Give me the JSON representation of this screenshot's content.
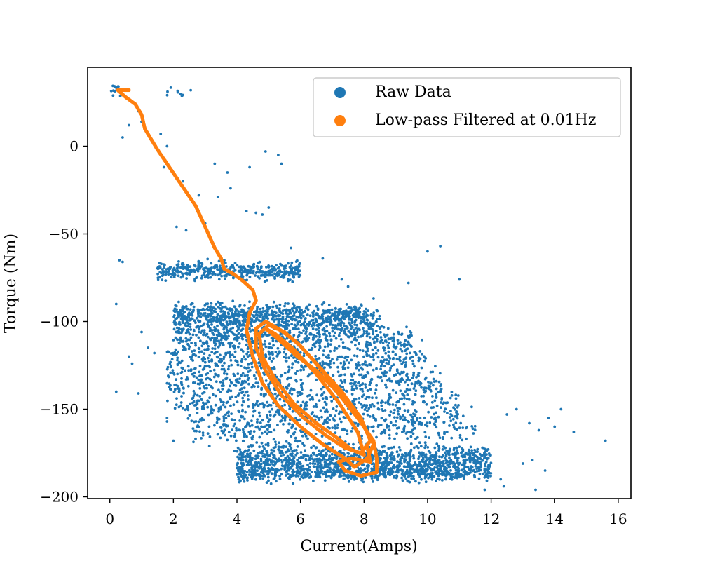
{
  "chart_data": {
    "type": "scatter",
    "title": "",
    "xlabel": "Current(Amps)",
    "ylabel": "Torque (Nm)",
    "xlim": [
      -0.7,
      16.4
    ],
    "ylim": [
      -201,
      45
    ],
    "xticks": [
      0,
      2,
      4,
      6,
      8,
      10,
      12,
      14,
      16
    ],
    "yticks": [
      0,
      -50,
      -100,
      -150,
      -200
    ],
    "ytick_labels": [
      "0",
      "−50",
      "−100",
      "−150",
      "−200"
    ],
    "grid": false,
    "legend_position": "top-right",
    "series": [
      {
        "name": "Raw Data",
        "color": "#1f77b4",
        "marker": "point",
        "bands": [
          {
            "x_range": [
              0.0,
              0.4
            ],
            "y_center": 32,
            "y_spread": 2,
            "count": 15
          },
          {
            "x_range": [
              1.5,
              2.8
            ],
            "y_center": 30,
            "y_spread": 1.5,
            "count": 10
          },
          {
            "x_range": [
              1.5,
              6.0
            ],
            "y_center": -71,
            "y_spread": 2.5,
            "count": 420
          },
          {
            "x_range": [
              2.0,
              8.0
            ],
            "y_center": -95,
            "y_spread": 2.5,
            "count": 380
          },
          {
            "x_range": [
              2.0,
              8.5
            ],
            "y_center": -100,
            "y_spread": 4,
            "count": 520
          },
          {
            "x_range": [
              2.0,
              9.5
            ],
            "y_center": -110,
            "y_spread": 4,
            "count": 450
          },
          {
            "x_range": [
              1.8,
              10.0
            ],
            "y_center": -122,
            "y_spread": 5,
            "count": 420
          },
          {
            "x_range": [
              1.8,
              10.5
            ],
            "y_center": -135,
            "y_spread": 5,
            "count": 420
          },
          {
            "x_range": [
              2.0,
              11.0
            ],
            "y_center": -148,
            "y_spread": 5,
            "count": 380
          },
          {
            "x_range": [
              2.5,
              11.5
            ],
            "y_center": -160,
            "y_spread": 5,
            "count": 380
          },
          {
            "x_range": [
              4.0,
              12.0
            ],
            "y_center": -178,
            "y_spread": 4,
            "count": 900
          },
          {
            "x_range": [
              4.0,
              12.0
            ],
            "y_center": -186,
            "y_spread": 2.5,
            "count": 700
          }
        ],
        "scatter_points": [
          [
            0.5,
            28
          ],
          [
            0.9,
            20
          ],
          [
            1.0,
            14
          ],
          [
            0.6,
            12
          ],
          [
            0.4,
            5
          ],
          [
            1.6,
            7
          ],
          [
            1.8,
            0
          ],
          [
            1.7,
            -12
          ],
          [
            2.3,
            -20
          ],
          [
            2.8,
            -28
          ],
          [
            2.1,
            -46
          ],
          [
            2.4,
            -48
          ],
          [
            3.0,
            -44
          ],
          [
            3.3,
            -10
          ],
          [
            3.7,
            -15
          ],
          [
            3.8,
            -24
          ],
          [
            3.4,
            -29
          ],
          [
            4.4,
            -12
          ],
          [
            4.3,
            -37
          ],
          [
            4.6,
            -38
          ],
          [
            4.8,
            -39
          ],
          [
            5.0,
            -35
          ],
          [
            5.4,
            -10
          ],
          [
            5.3,
            -5
          ],
          [
            4.9,
            -3
          ],
          [
            5.7,
            -58
          ],
          [
            6.7,
            -64
          ],
          [
            7.3,
            -76
          ],
          [
            7.5,
            -80
          ],
          [
            8.3,
            -87
          ],
          [
            9.4,
            -78
          ],
          [
            10.0,
            -60
          ],
          [
            10.4,
            -57
          ],
          [
            11.0,
            -76
          ],
          [
            0.3,
            -65
          ],
          [
            0.4,
            -66
          ],
          [
            0.2,
            -90
          ],
          [
            0.2,
            -140
          ],
          [
            0.9,
            -141
          ],
          [
            0.6,
            -120
          ],
          [
            0.7,
            -124
          ],
          [
            1.0,
            -106
          ],
          [
            1.2,
            -115
          ],
          [
            1.4,
            -118
          ],
          [
            1.8,
            -155
          ],
          [
            1.8,
            -157
          ],
          [
            2.0,
            -168
          ],
          [
            2.8,
            -160
          ],
          [
            12.5,
            -153
          ],
          [
            12.8,
            -150
          ],
          [
            13.2,
            -158
          ],
          [
            13.5,
            -162
          ],
          [
            13.8,
            -155
          ],
          [
            14.0,
            -160
          ],
          [
            14.2,
            -150
          ],
          [
            14.6,
            -163
          ],
          [
            15.6,
            -168
          ],
          [
            13.0,
            -181
          ],
          [
            13.3,
            -179
          ],
          [
            13.7,
            -185
          ],
          [
            12.3,
            -190
          ],
          [
            12.4,
            -194
          ],
          [
            13.4,
            -196
          ],
          [
            11.8,
            -196
          ]
        ]
      },
      {
        "name": "Low-pass Filtered at 0.01Hz",
        "color": "#ff7f0e",
        "marker": "point",
        "path": [
          [
            0.6,
            32
          ],
          [
            0.25,
            32
          ],
          [
            0.5,
            28
          ],
          [
            0.8,
            24
          ],
          [
            1.0,
            18
          ],
          [
            1.1,
            10
          ],
          [
            1.3,
            4
          ],
          [
            1.5,
            -2
          ],
          [
            1.8,
            -10
          ],
          [
            2.1,
            -18
          ],
          [
            2.4,
            -26
          ],
          [
            2.7,
            -34
          ],
          [
            2.9,
            -42
          ],
          [
            3.1,
            -50
          ],
          [
            3.3,
            -58
          ],
          [
            3.5,
            -64
          ],
          [
            3.6,
            -70
          ],
          [
            3.9,
            -73
          ],
          [
            4.2,
            -77
          ],
          [
            4.5,
            -82
          ],
          [
            4.6,
            -88
          ],
          [
            4.4,
            -95
          ],
          [
            4.3,
            -105
          ],
          [
            4.5,
            -120
          ],
          [
            4.8,
            -135
          ],
          [
            5.3,
            -148
          ],
          [
            6.0,
            -160
          ],
          [
            6.7,
            -170
          ],
          [
            7.4,
            -178
          ],
          [
            7.7,
            -183
          ],
          [
            8.1,
            -178
          ],
          [
            8.3,
            -170
          ],
          [
            8.0,
            -160
          ],
          [
            7.6,
            -148
          ],
          [
            7.0,
            -135
          ],
          [
            6.4,
            -122
          ],
          [
            5.9,
            -112
          ],
          [
            5.3,
            -104
          ],
          [
            4.9,
            -100
          ],
          [
            4.6,
            -104
          ],
          [
            4.6,
            -115
          ],
          [
            4.9,
            -128
          ],
          [
            5.4,
            -142
          ],
          [
            6.1,
            -155
          ],
          [
            6.8,
            -165
          ],
          [
            7.4,
            -172
          ],
          [
            7.9,
            -175
          ],
          [
            8.2,
            -168
          ],
          [
            7.9,
            -155
          ],
          [
            7.3,
            -140
          ],
          [
            6.6,
            -126
          ],
          [
            6.0,
            -114
          ],
          [
            5.5,
            -106
          ],
          [
            5.0,
            -102
          ],
          [
            4.7,
            -107
          ],
          [
            4.8,
            -120
          ],
          [
            5.2,
            -133
          ],
          [
            5.8,
            -147
          ],
          [
            6.5,
            -158
          ],
          [
            7.2,
            -167
          ],
          [
            7.6,
            -173
          ],
          [
            8.0,
            -176
          ],
          [
            7.8,
            -163
          ],
          [
            7.2,
            -146
          ],
          [
            6.5,
            -130
          ],
          [
            5.8,
            -116
          ],
          [
            5.2,
            -107
          ],
          [
            4.9,
            -104
          ],
          [
            5.3,
            -110
          ],
          [
            5.9,
            -120
          ],
          [
            6.5,
            -128
          ],
          [
            7.1,
            -139
          ],
          [
            7.8,
            -155
          ],
          [
            8.3,
            -168
          ],
          [
            8.4,
            -178
          ],
          [
            8.4,
            -186
          ],
          [
            7.9,
            -188
          ],
          [
            7.4,
            -185
          ],
          [
            7.2,
            -180
          ],
          [
            7.6,
            -178
          ],
          [
            8.2,
            -180
          ],
          [
            8.1,
            -171
          ]
        ]
      }
    ]
  }
}
